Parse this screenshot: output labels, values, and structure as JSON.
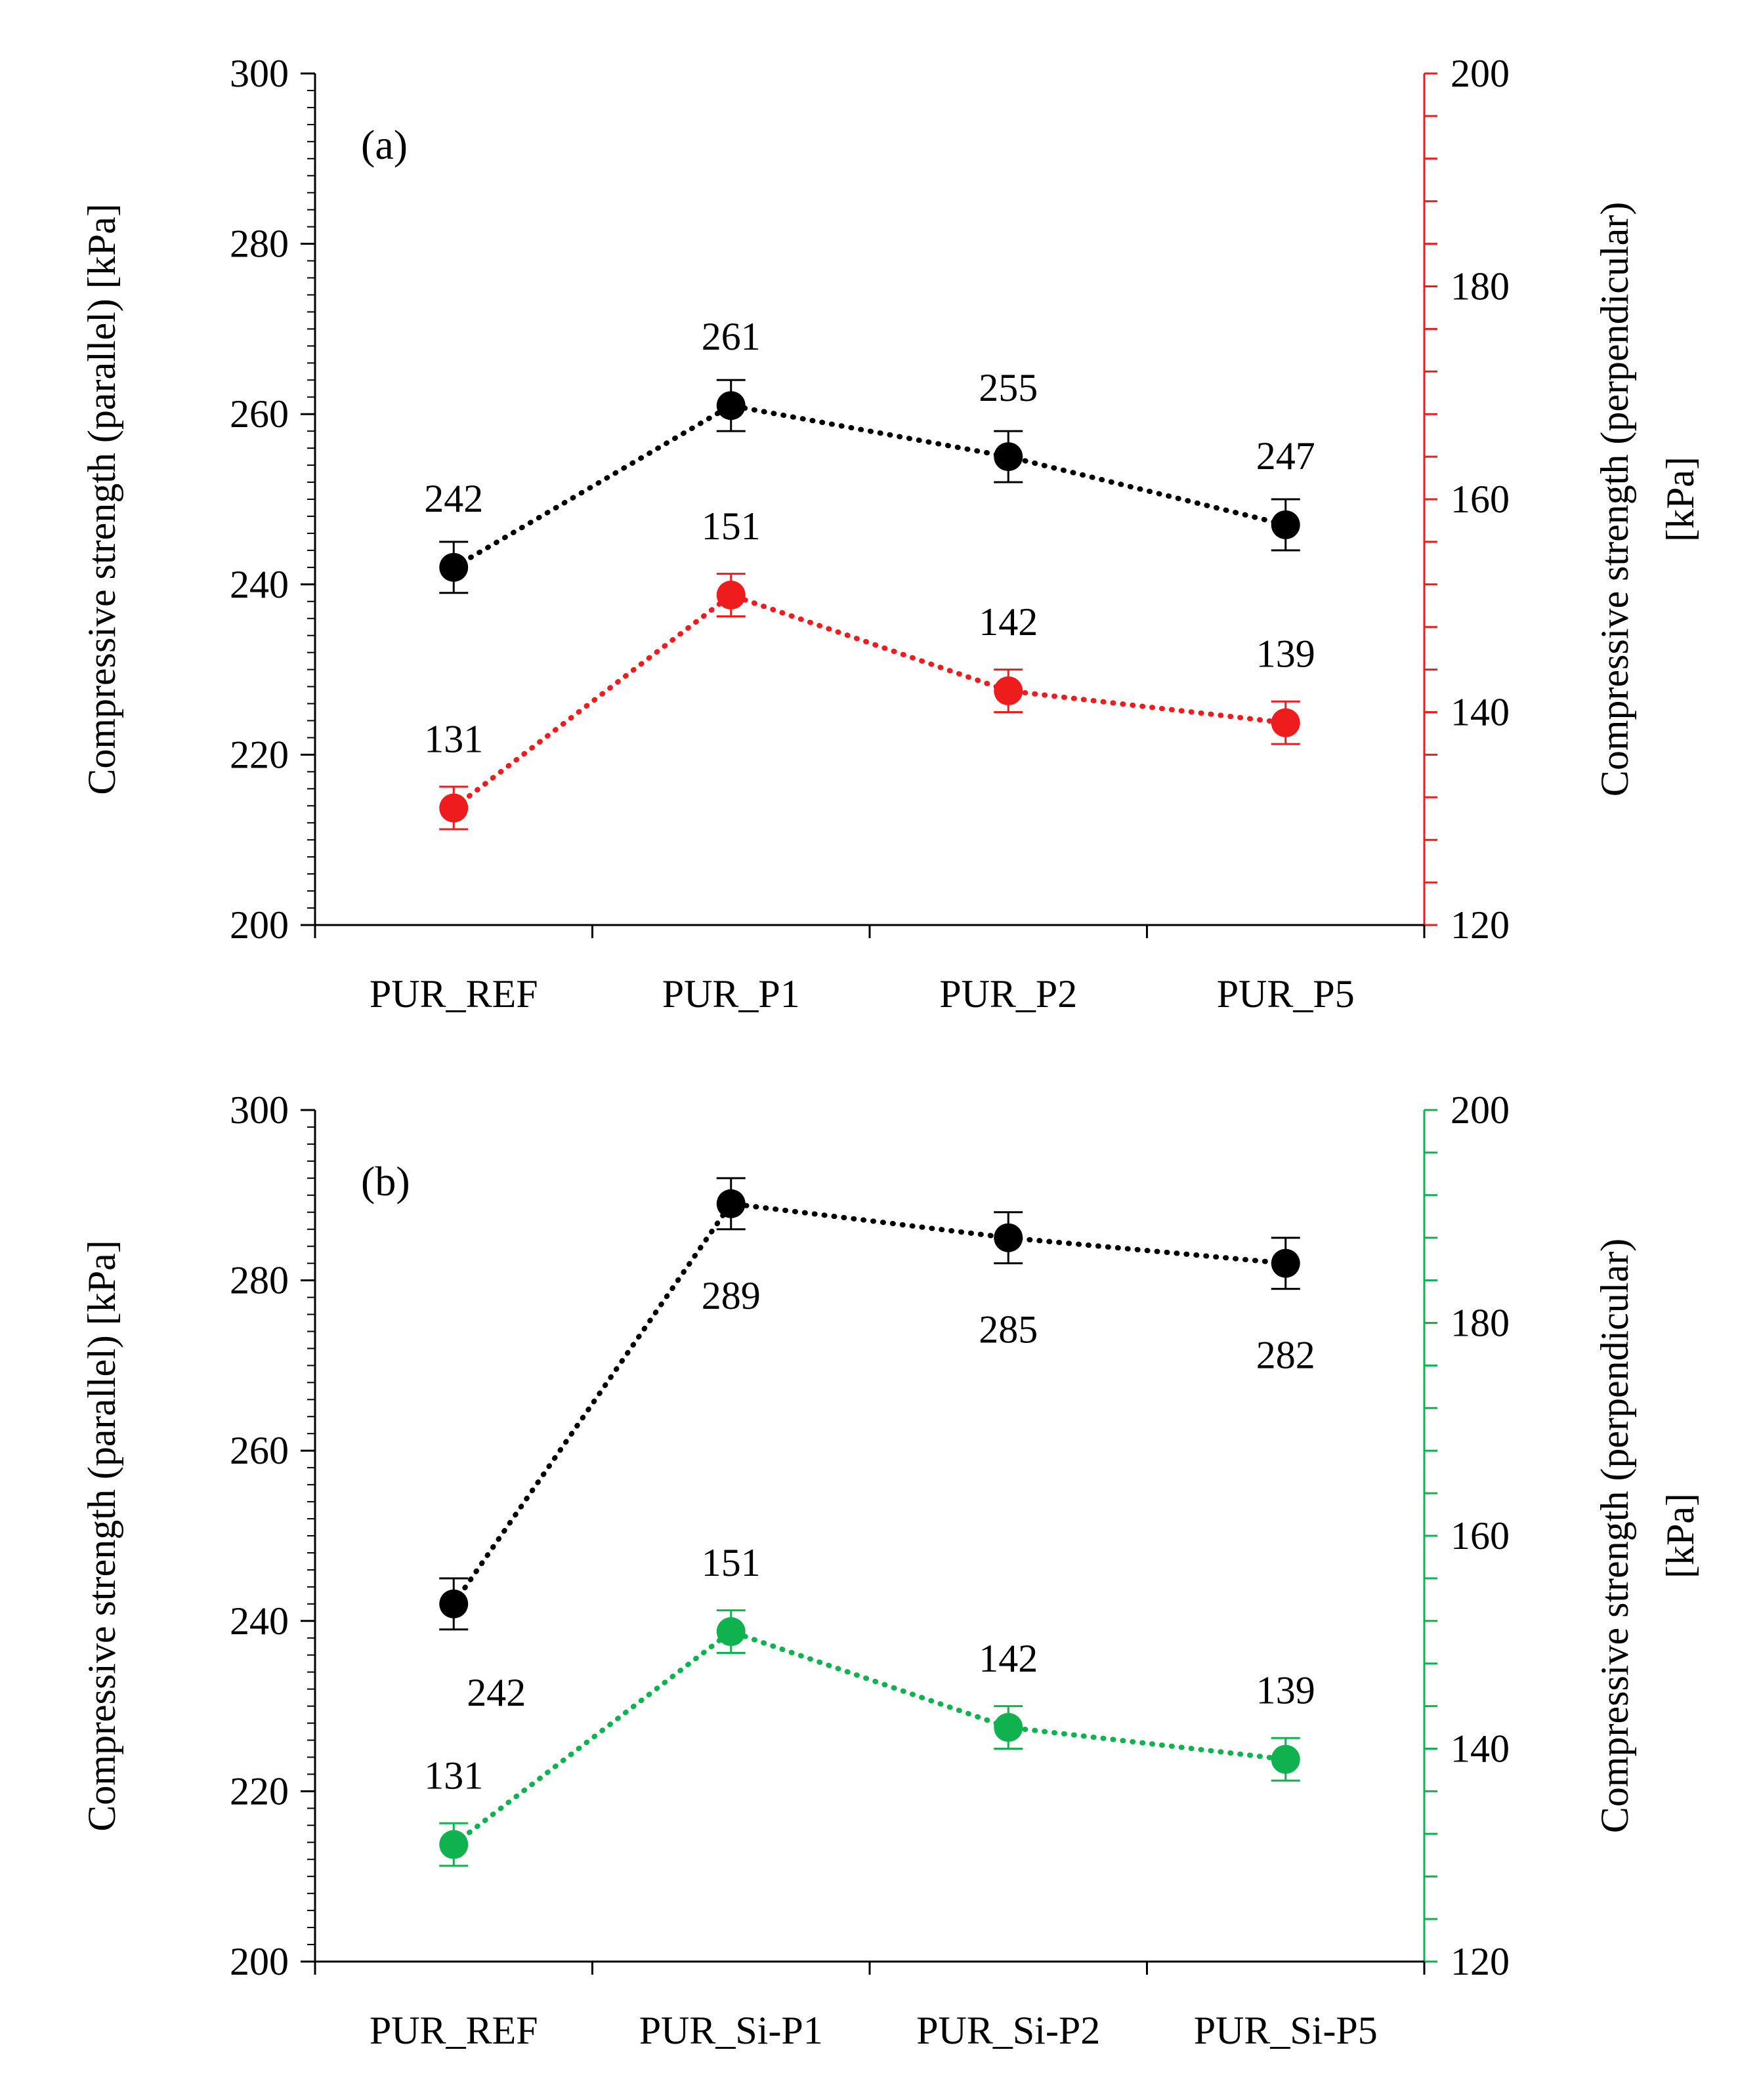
{
  "colors": {
    "parallel": "#000000",
    "perp_a": "#ee1c1c",
    "perp_b": "#0fb24e",
    "axis": "#000000"
  },
  "chart_data": [
    {
      "type": "line",
      "panel_label": "(a)",
      "categories": [
        "PUR_REF",
        "PUR_P1",
        "PUR_P2",
        "PUR_P5"
      ],
      "ylabel": "Compressive strength (parallel) [kPa]",
      "y2label_line1": "Compressive strength (perpendicular)",
      "y2label_line2": "[kPa]",
      "ylim": [
        200,
        300
      ],
      "y2lim": [
        120,
        200
      ],
      "yticks": [
        200,
        220,
        240,
        260,
        280,
        300
      ],
      "y2ticks": [
        120,
        140,
        160,
        180,
        200
      ],
      "series": [
        {
          "name": "parallel",
          "axis": "left",
          "color": "#000000",
          "values": [
            242,
            261,
            255,
            247
          ],
          "errors": [
            3,
            3,
            3,
            3
          ],
          "labels": [
            "242",
            "261",
            "255",
            "247"
          ],
          "label_pos": [
            "above",
            "above",
            "above",
            "above"
          ]
        },
        {
          "name": "perpendicular",
          "axis": "right",
          "color": "#ee1c1c",
          "values": [
            131,
            151,
            142,
            139
          ],
          "errors": [
            2,
            2,
            2,
            2
          ],
          "labels": [
            "131",
            "151",
            "142",
            "139"
          ],
          "label_pos": [
            "above",
            "above",
            "above",
            "above"
          ]
        }
      ]
    },
    {
      "type": "line",
      "panel_label": "(b)",
      "categories": [
        "PUR_REF",
        "PUR_Si-P1",
        "PUR_Si-P2",
        "PUR_Si-P5"
      ],
      "ylabel": "Compressive strength (parallel) [kPa]",
      "y2label_line1": "Compressive strength (perpendicular)",
      "y2label_line2": "[kPa]",
      "ylim": [
        200,
        300
      ],
      "y2lim": [
        120,
        200
      ],
      "yticks": [
        200,
        220,
        240,
        260,
        280,
        300
      ],
      "y2ticks": [
        120,
        140,
        160,
        180,
        200
      ],
      "series": [
        {
          "name": "parallel",
          "axis": "left",
          "color": "#000000",
          "values": [
            242,
            289,
            285,
            282
          ],
          "errors": [
            3,
            3,
            3,
            3
          ],
          "labels": [
            "242",
            "289",
            "285",
            "282"
          ],
          "label_pos": [
            "below-right",
            "below",
            "below",
            "below"
          ]
        },
        {
          "name": "perpendicular",
          "axis": "right",
          "color": "#0fb24e",
          "values": [
            131,
            151,
            142,
            139
          ],
          "errors": [
            2,
            2,
            2,
            2
          ],
          "labels": [
            "131",
            "151",
            "142",
            "139"
          ],
          "label_pos": [
            "above",
            "above",
            "above",
            "above"
          ]
        }
      ]
    }
  ]
}
